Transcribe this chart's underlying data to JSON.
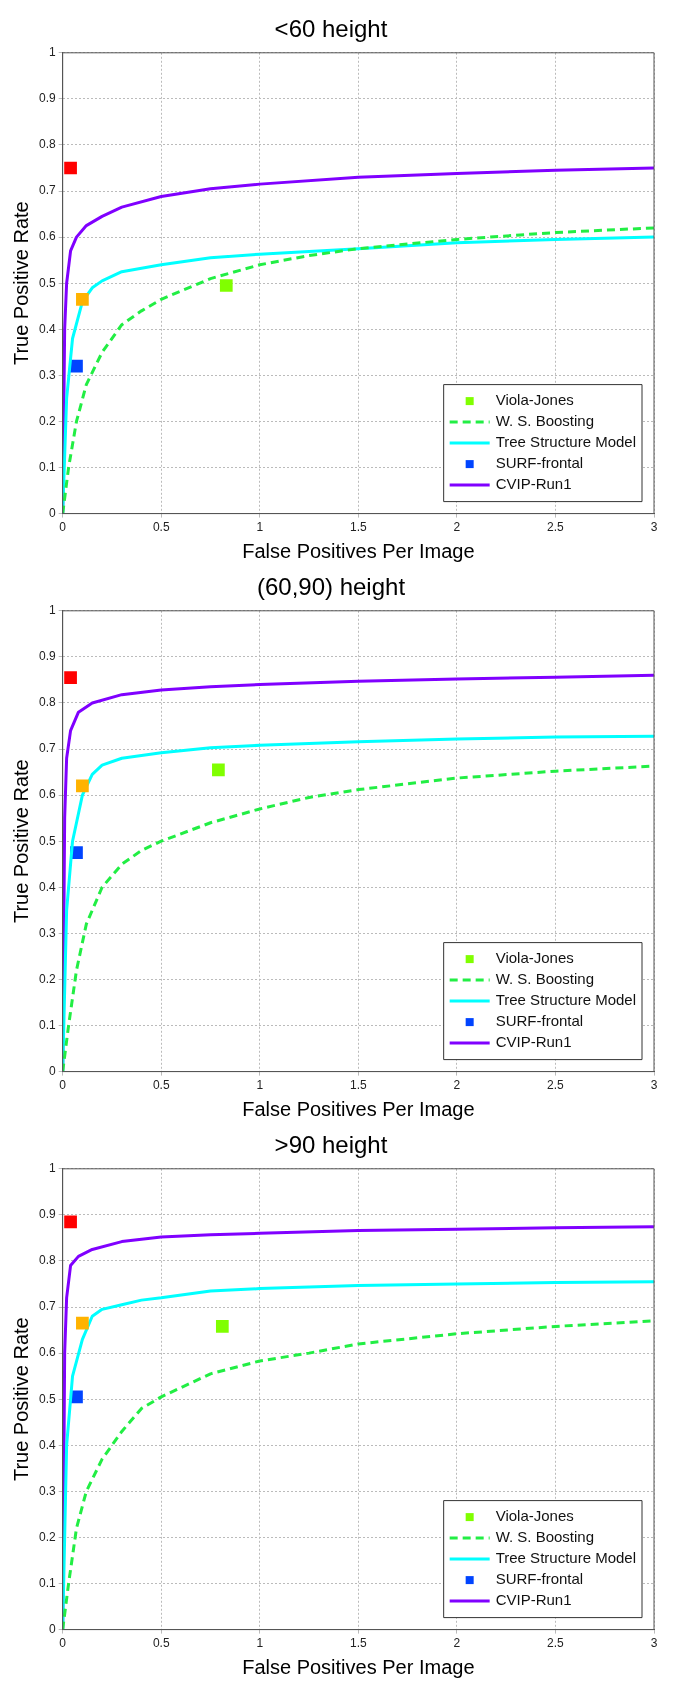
{
  "chart_data": [
    {
      "type": "line",
      "title": "<60 height",
      "xlabel": "False Positives Per Image",
      "ylabel": "True Positive Rate",
      "xlim": [
        0,
        3
      ],
      "xticks": [
        0,
        0.5,
        1,
        1.5,
        2,
        2.5,
        3
      ],
      "ylim": [
        0,
        1
      ],
      "yticks": [
        0,
        0.1,
        0.2,
        0.3,
        0.4,
        0.5,
        0.6,
        0.7,
        0.8,
        0.9,
        1
      ],
      "grid": true,
      "legend": "bottom right",
      "series": [
        {
          "type": "scatter",
          "marker": "square",
          "color": "#ff0000",
          "x": [
            0.04
          ],
          "values": [
            0.75
          ]
        },
        {
          "type": "scatter",
          "marker": "square",
          "color": "#ffb300",
          "x": [
            0.1
          ],
          "values": [
            0.465
          ]
        },
        {
          "type": "scatter",
          "marker": "square",
          "name": "Viola-Jones",
          "color": "#80ff00",
          "x": [
            0.83
          ],
          "values": [
            0.495
          ]
        },
        {
          "type": "line",
          "line_style": "dashed",
          "name": "W. S. Boosting",
          "color": "#22ee44",
          "x": [
            0,
            0.03,
            0.07,
            0.12,
            0.2,
            0.3,
            0.4,
            0.5,
            0.75,
            1,
            1.25,
            1.5,
            2,
            2.5,
            3
          ],
          "values": [
            0,
            0.1,
            0.2,
            0.28,
            0.35,
            0.41,
            0.44,
            0.465,
            0.51,
            0.54,
            0.56,
            0.575,
            0.595,
            0.61,
            0.62
          ]
        },
        {
          "type": "line",
          "line_style": "solid",
          "name": "Tree Structure Model",
          "color": "#00ffff",
          "x": [
            0,
            0.02,
            0.05,
            0.1,
            0.15,
            0.2,
            0.3,
            0.5,
            0.75,
            1,
            1.5,
            2,
            2.5,
            3
          ],
          "values": [
            0,
            0.25,
            0.38,
            0.46,
            0.49,
            0.505,
            0.525,
            0.54,
            0.555,
            0.563,
            0.575,
            0.588,
            0.595,
            0.6
          ]
        },
        {
          "type": "scatter",
          "marker": "square",
          "name": "SURF-frontal",
          "color": "#0044ff",
          "x": [
            0.07
          ],
          "values": [
            0.32
          ]
        },
        {
          "type": "line",
          "line_style": "solid",
          "name": "CVIP-Run1",
          "color": "#8000ff",
          "x": [
            0,
            0.01,
            0.02,
            0.04,
            0.07,
            0.12,
            0.2,
            0.3,
            0.5,
            0.75,
            1,
            1.5,
            2,
            2.5,
            3
          ],
          "values": [
            0,
            0.4,
            0.5,
            0.57,
            0.6,
            0.625,
            0.645,
            0.665,
            0.688,
            0.705,
            0.715,
            0.73,
            0.738,
            0.745,
            0.75
          ]
        }
      ]
    },
    {
      "type": "line",
      "title": "(60,90) height",
      "xlabel": "False Positives Per Image",
      "ylabel": "True Positive Rate",
      "xlim": [
        0,
        3
      ],
      "xticks": [
        0,
        0.5,
        1,
        1.5,
        2,
        2.5,
        3
      ],
      "ylim": [
        0,
        1
      ],
      "yticks": [
        0,
        0.1,
        0.2,
        0.3,
        0.4,
        0.5,
        0.6,
        0.7,
        0.8,
        0.9,
        1
      ],
      "grid": true,
      "legend": "bottom right",
      "series": [
        {
          "type": "scatter",
          "marker": "square",
          "color": "#ff0000",
          "x": [
            0.04
          ],
          "values": [
            0.855
          ]
        },
        {
          "type": "scatter",
          "marker": "square",
          "color": "#ffb300",
          "x": [
            0.1
          ],
          "values": [
            0.62
          ]
        },
        {
          "type": "scatter",
          "marker": "square",
          "name": "Viola-Jones",
          "color": "#80ff00",
          "x": [
            0.79
          ],
          "values": [
            0.655
          ]
        },
        {
          "type": "line",
          "line_style": "dashed",
          "name": "W. S. Boosting",
          "color": "#22ee44",
          "x": [
            0,
            0.03,
            0.07,
            0.12,
            0.2,
            0.3,
            0.4,
            0.5,
            0.75,
            1,
            1.25,
            1.5,
            2,
            2.5,
            3
          ],
          "values": [
            0,
            0.1,
            0.22,
            0.32,
            0.4,
            0.45,
            0.48,
            0.5,
            0.54,
            0.57,
            0.595,
            0.612,
            0.637,
            0.652,
            0.663
          ]
        },
        {
          "type": "line",
          "line_style": "solid",
          "name": "Tree Structure Model",
          "color": "#00ffff",
          "x": [
            0,
            0.02,
            0.05,
            0.1,
            0.15,
            0.2,
            0.3,
            0.5,
            0.75,
            1,
            1.5,
            2,
            2.5,
            3
          ],
          "values": [
            0,
            0.35,
            0.5,
            0.6,
            0.645,
            0.665,
            0.68,
            0.692,
            0.703,
            0.708,
            0.716,
            0.722,
            0.726,
            0.728
          ]
        },
        {
          "type": "scatter",
          "marker": "square",
          "name": "SURF-frontal",
          "color": "#0044ff",
          "x": [
            0.07
          ],
          "values": [
            0.475
          ]
        },
        {
          "type": "line",
          "line_style": "solid",
          "name": "CVIP-Run1",
          "color": "#8000ff",
          "x": [
            0,
            0.01,
            0.02,
            0.04,
            0.08,
            0.15,
            0.3,
            0.5,
            0.75,
            1,
            1.5,
            2,
            2.5,
            3
          ],
          "values": [
            0,
            0.55,
            0.68,
            0.74,
            0.78,
            0.8,
            0.818,
            0.828,
            0.835,
            0.84,
            0.847,
            0.852,
            0.856,
            0.86
          ]
        }
      ]
    },
    {
      "type": "line",
      "title": ">90 height",
      "xlabel": "False Positives Per Image",
      "ylabel": "True Positive Rate",
      "xlim": [
        0,
        3
      ],
      "xticks": [
        0,
        0.5,
        1,
        1.5,
        2,
        2.5,
        3
      ],
      "ylim": [
        0,
        1
      ],
      "yticks": [
        0,
        0.1,
        0.2,
        0.3,
        0.4,
        0.5,
        0.6,
        0.7,
        0.8,
        0.9,
        1
      ],
      "grid": true,
      "legend": "bottom right",
      "series": [
        {
          "type": "scatter",
          "marker": "square",
          "color": "#ff0000",
          "x": [
            0.04
          ],
          "values": [
            0.885
          ]
        },
        {
          "type": "scatter",
          "marker": "square",
          "color": "#ffb300",
          "x": [
            0.1
          ],
          "values": [
            0.665
          ]
        },
        {
          "type": "scatter",
          "marker": "square",
          "name": "Viola-Jones",
          "color": "#80ff00",
          "x": [
            0.81
          ],
          "values": [
            0.658
          ]
        },
        {
          "type": "line",
          "line_style": "dashed",
          "name": "W. S. Boosting",
          "color": "#22ee44",
          "x": [
            0,
            0.03,
            0.07,
            0.12,
            0.2,
            0.3,
            0.4,
            0.5,
            0.75,
            1,
            1.25,
            1.5,
            2,
            2.5,
            3
          ],
          "values": [
            0,
            0.1,
            0.22,
            0.3,
            0.37,
            0.43,
            0.48,
            0.505,
            0.555,
            0.583,
            0.6,
            0.62,
            0.642,
            0.658,
            0.67
          ]
        },
        {
          "type": "line",
          "line_style": "solid",
          "name": "Tree Structure Model",
          "color": "#00ffff",
          "x": [
            0,
            0.02,
            0.05,
            0.1,
            0.15,
            0.2,
            0.3,
            0.4,
            0.5,
            0.75,
            1,
            1.5,
            2,
            2.5,
            3
          ],
          "values": [
            0,
            0.4,
            0.55,
            0.63,
            0.68,
            0.695,
            0.705,
            0.715,
            0.72,
            0.735,
            0.74,
            0.747,
            0.75,
            0.753,
            0.755
          ]
        },
        {
          "type": "scatter",
          "marker": "square",
          "name": "SURF-frontal",
          "color": "#0044ff",
          "x": [
            0.07
          ],
          "values": [
            0.505
          ]
        },
        {
          "type": "line",
          "line_style": "solid",
          "name": "CVIP-Run1",
          "color": "#8000ff",
          "x": [
            0,
            0.01,
            0.02,
            0.04,
            0.08,
            0.15,
            0.3,
            0.5,
            0.75,
            1,
            1.5,
            2,
            2.5,
            3
          ],
          "values": [
            0,
            0.6,
            0.72,
            0.79,
            0.81,
            0.825,
            0.842,
            0.852,
            0.857,
            0.86,
            0.866,
            0.869,
            0.872,
            0.874
          ]
        }
      ]
    }
  ]
}
